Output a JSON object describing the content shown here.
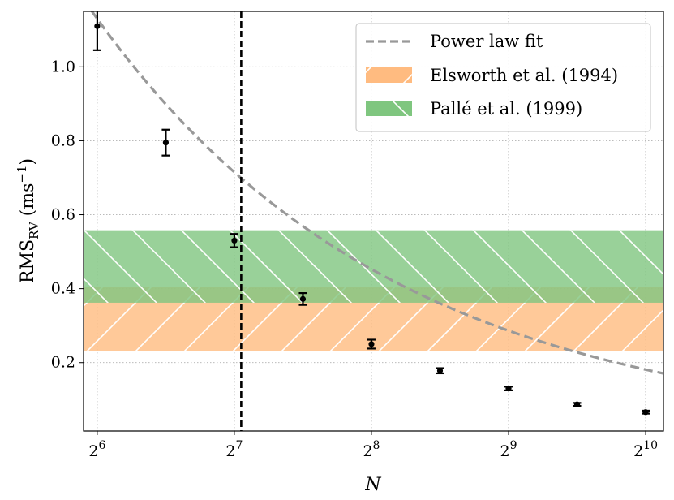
{
  "chart_data": {
    "type": "scatter",
    "title": "",
    "xlabel": "N",
    "ylabel": "RMS_RV (ms^-1)",
    "ylabel_parts": {
      "main": "RMS",
      "sub": "RV",
      "unit_open": " (ms",
      "unit_sup": "−1",
      "unit_close": ")"
    },
    "x_scale": "log2",
    "xlim_log2": [
      5.9,
      10.13
    ],
    "ylim": [
      0.015,
      1.15
    ],
    "grid": true,
    "x_ticks": [
      {
        "value_log2": 6,
        "base": "2",
        "exp": "6"
      },
      {
        "value_log2": 7,
        "base": "2",
        "exp": "7"
      },
      {
        "value_log2": 8,
        "base": "2",
        "exp": "8"
      },
      {
        "value_log2": 9,
        "base": "2",
        "exp": "9"
      },
      {
        "value_log2": 10,
        "base": "2",
        "exp": "10"
      }
    ],
    "y_ticks": [
      {
        "value": 0.2,
        "label": "0.2"
      },
      {
        "value": 0.4,
        "label": "0.4"
      },
      {
        "value": 0.6,
        "label": "0.6"
      },
      {
        "value": 0.8,
        "label": "0.8"
      },
      {
        "value": 1.0,
        "label": "1.0"
      }
    ],
    "data_points": {
      "name": "Measured RMS",
      "color": "#000000",
      "points": [
        {
          "x_log2": 6.0,
          "y": 1.11,
          "err": 0.065
        },
        {
          "x_log2": 6.5,
          "y": 0.795,
          "err": 0.035
        },
        {
          "x_log2": 7.0,
          "y": 0.53,
          "err": 0.018
        },
        {
          "x_log2": 7.5,
          "y": 0.372,
          "err": 0.016
        },
        {
          "x_log2": 8.0,
          "y": 0.25,
          "err": 0.012
        },
        {
          "x_log2": 8.5,
          "y": 0.178,
          "err": 0.007
        },
        {
          "x_log2": 9.0,
          "y": 0.13,
          "err": 0.005
        },
        {
          "x_log2": 9.5,
          "y": 0.087,
          "err": 0.004
        },
        {
          "x_log2": 10.0,
          "y": 0.066,
          "err": 0.004
        }
      ]
    },
    "power_law_fit": {
      "label": "Power law fit",
      "A": 1.13,
      "slope": -0.66,
      "ref_log2": 6,
      "color": "#999999"
    },
    "bands": [
      {
        "label": "Elsworth et al. (1994)",
        "ymin": 0.232,
        "ymax": 0.405,
        "color": "#ffbb80",
        "hatch": "forward"
      },
      {
        "label": "Pallé et al. (1999)",
        "ymin": 0.362,
        "ymax": 0.558,
        "color": "#7fc67f",
        "hatch": "backward"
      }
    ],
    "vertical_line": {
      "x_log2": 7.05,
      "color": "#000000"
    },
    "legend_position": "top-right"
  }
}
